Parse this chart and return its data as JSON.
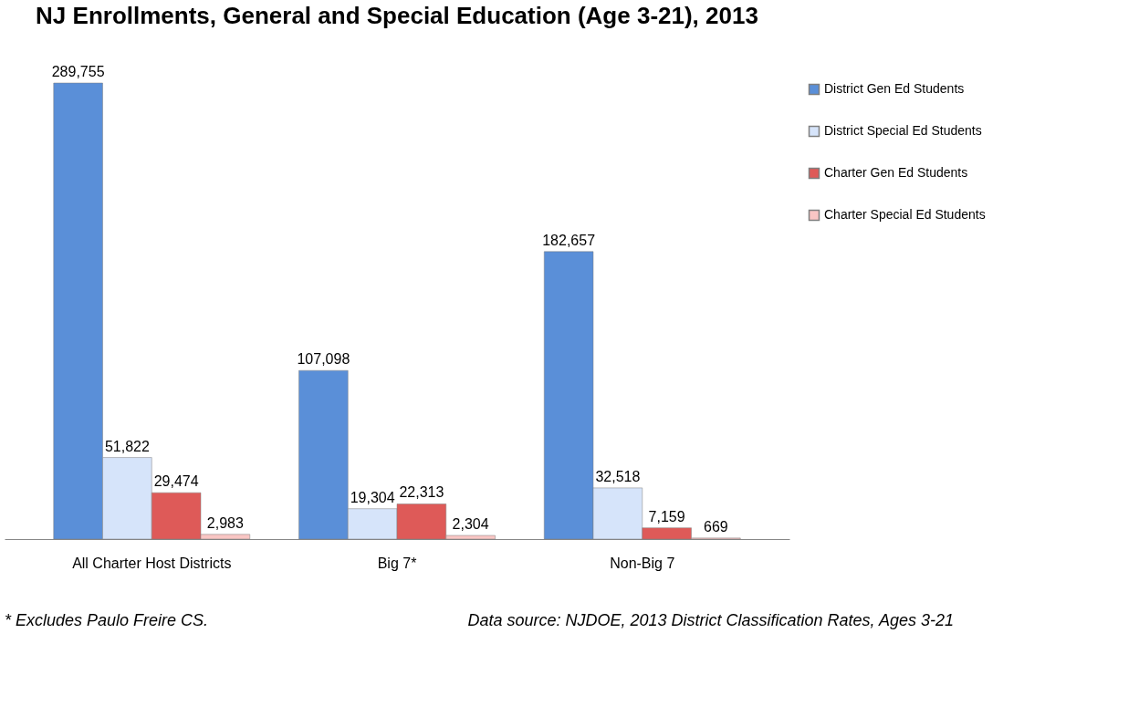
{
  "chart_data": {
    "type": "bar",
    "title": "NJ Enrollments, General and Special Education (Age 3-21), 2013",
    "categories": [
      "All Charter Host Districts",
      "Big 7*",
      "Non-Big 7"
    ],
    "series": [
      {
        "name": "District Gen Ed Students",
        "color": "#5a8fd8",
        "values": [
          289755,
          107098,
          182657
        ],
        "value_labels": [
          "289,755",
          "107,098",
          "182,657"
        ]
      },
      {
        "name": "District Special Ed Students",
        "color": "#d6e4fa",
        "values": [
          51822,
          19304,
          32518
        ],
        "value_labels": [
          "51,822",
          "19,304",
          "32,518"
        ]
      },
      {
        "name": "Charter Gen Ed Students",
        "color": "#de5a58",
        "values": [
          29474,
          22313,
          7159
        ],
        "value_labels": [
          "29,474",
          "22,313",
          "7,159"
        ]
      },
      {
        "name": "Charter Special Ed Students",
        "color": "#f9c6c4",
        "values": [
          2983,
          2304,
          669
        ],
        "value_labels": [
          "2,983",
          "2,304",
          "669"
        ]
      }
    ],
    "legend": "right",
    "grid": false,
    "annotations": [
      "* Excludes Paulo Freire CS.",
      "Data source: NJDOE, 2013 District Classification Rates, Ages 3-21"
    ]
  }
}
